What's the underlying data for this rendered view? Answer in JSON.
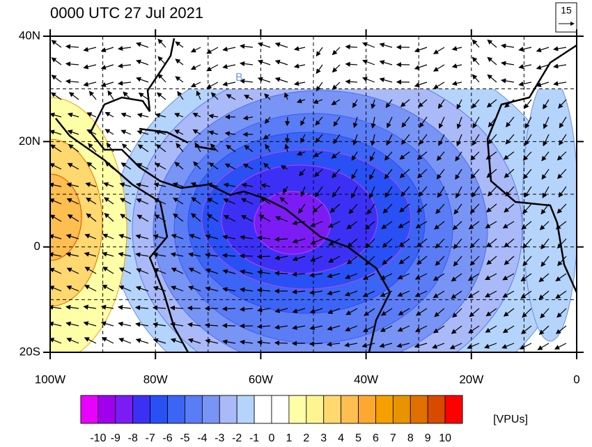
{
  "map_data": {
    "title": "0000 UTC 27 Jul 2021",
    "xticks": [
      {
        "value": -100,
        "label": "100W"
      },
      {
        "value": -80,
        "label": "80W"
      },
      {
        "value": -60,
        "label": "60W"
      },
      {
        "value": -40,
        "label": "40W"
      },
      {
        "value": -20,
        "label": "20W"
      },
      0
    ],
    "yticks": [
      {
        "value": 40,
        "label": "40N"
      },
      {
        "value": 20,
        "label": "20N"
      },
      0,
      {
        "value": -20,
        "label": "20S"
      }
    ],
    "xlim": [
      -100,
      0
    ],
    "ylim": [
      -20,
      40
    ],
    "vector_key": "15",
    "annotation": "B",
    "colorbar": {
      "labels": [
        -10,
        -9,
        -8,
        -7,
        -6,
        -5,
        -4,
        -3,
        -2,
        -1,
        0,
        1,
        2,
        3,
        4,
        5,
        6,
        7,
        8,
        9,
        10
      ],
      "colors": [
        "#ea00ff",
        "#a000ee",
        "#7b1cf5",
        "#3d30f5",
        "#2850f5",
        "#3c64f5",
        "#5a7cf5",
        "#7894f5",
        "#aab9f8",
        "#b4d4fb",
        "#ffffff",
        "#ffffff",
        "#ffffa8",
        "#fff590",
        "#ffd870",
        "#ffbe50",
        "#ffa830",
        "#f5a000",
        "#e89400",
        "#e07000",
        "#d84a00",
        "#ff0000"
      ],
      "units": "[VPUs]"
    }
  }
}
